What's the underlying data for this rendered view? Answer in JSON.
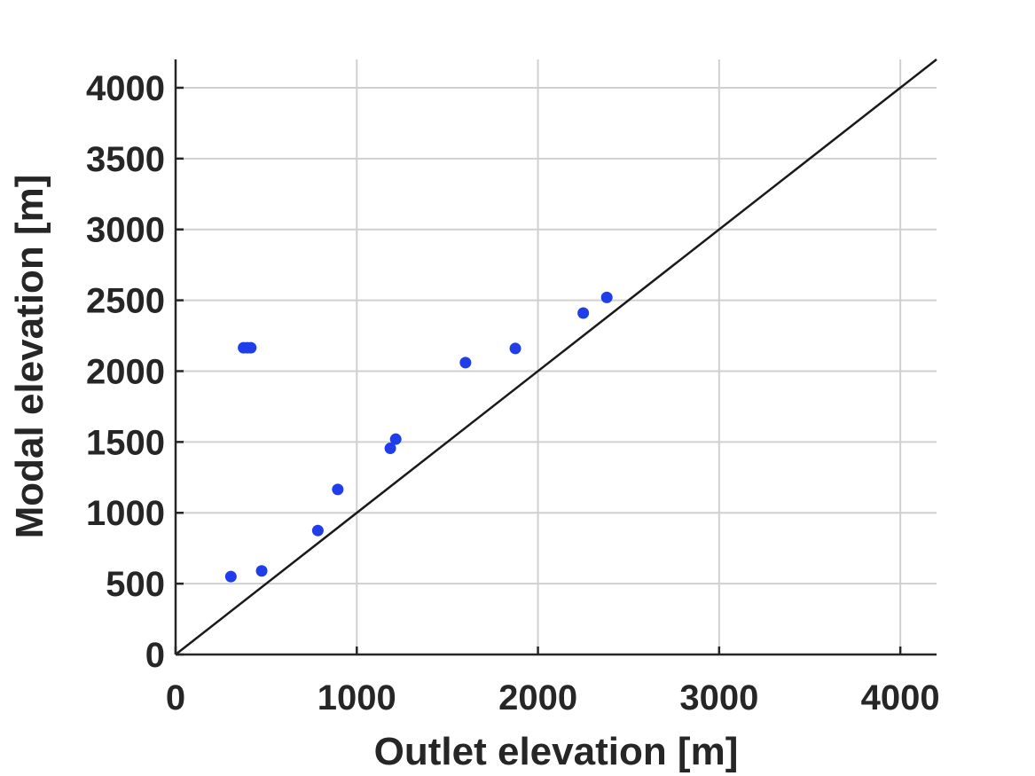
{
  "chart_data": {
    "type": "scatter",
    "title": "",
    "xlabel": "Outlet elevation [m]",
    "ylabel": "Modal elevation [m]",
    "xlim": [
      0,
      4200
    ],
    "ylim": [
      0,
      4200
    ],
    "xticks": [
      0,
      1000,
      2000,
      3000,
      4000
    ],
    "yticks": [
      0,
      500,
      1000,
      1500,
      2000,
      2500,
      3000,
      3500,
      4000
    ],
    "xtick_labels": [
      "0",
      "1000",
      "2000",
      "3000",
      "4000"
    ],
    "ytick_labels": [
      "0",
      "500",
      "1000",
      "1500",
      "2000",
      "2500",
      "3000",
      "3500",
      "4000"
    ],
    "grid": true,
    "reference_line": {
      "type": "1:1",
      "x": [
        0,
        4200
      ],
      "y": [
        0,
        4200
      ],
      "color": "#1a1a1a"
    },
    "series": [
      {
        "color": "#1f3de8",
        "points": [
          {
            "x": 305,
            "y": 550
          },
          {
            "x": 375,
            "y": 2165
          },
          {
            "x": 395,
            "y": 2165
          },
          {
            "x": 415,
            "y": 2165
          },
          {
            "x": 475,
            "y": 590
          },
          {
            "x": 785,
            "y": 875
          },
          {
            "x": 895,
            "y": 1165
          },
          {
            "x": 1185,
            "y": 1455
          },
          {
            "x": 1215,
            "y": 1520
          },
          {
            "x": 1600,
            "y": 2060
          },
          {
            "x": 1875,
            "y": 2160
          },
          {
            "x": 2250,
            "y": 2410
          },
          {
            "x": 2380,
            "y": 2520
          }
        ]
      }
    ]
  }
}
